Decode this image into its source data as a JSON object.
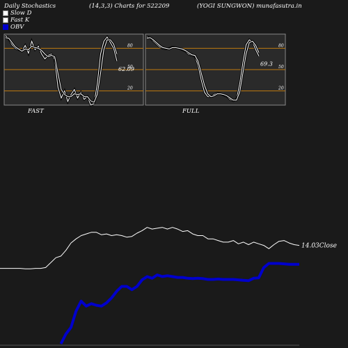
{
  "header": {
    "left": "Daily Stochastics",
    "center": "(14,3,3) Charts for 522209",
    "right": "(YOGI SUNGWON) munafasutra.in"
  },
  "legend": [
    {
      "label": "Slow  D",
      "color": "#ffffff"
    },
    {
      "label": "Fast K",
      "color": "#ffffff"
    },
    {
      "label": "OBV",
      "color": "#0000cc"
    }
  ],
  "chart_data": [
    {
      "type": "line",
      "title": "",
      "xlabel": "FAST",
      "ylim": [
        0,
        100
      ],
      "yticks": [
        20,
        50,
        80
      ],
      "ref_lines": [
        20,
        50,
        80
      ],
      "last_label": "62.09",
      "series": [
        {
          "values": [
            98,
            93,
            85,
            80,
            78,
            76,
            84,
            73,
            90,
            78,
            83,
            72,
            65,
            70,
            72,
            64,
            25,
            10,
            20,
            5,
            15,
            22,
            10,
            18,
            8,
            12,
            0,
            2,
            30,
            72,
            90,
            96,
            88,
            80,
            62
          ]
        },
        {
          "values": [
            95,
            94,
            88,
            82,
            79,
            76,
            79,
            78,
            83,
            81,
            80,
            77,
            72,
            68,
            70,
            68,
            45,
            22,
            15,
            12,
            12,
            16,
            15,
            16,
            12,
            12,
            6,
            4,
            15,
            45,
            78,
            92,
            92,
            86,
            72
          ]
        }
      ]
    },
    {
      "type": "line",
      "title": "",
      "xlabel": "FULL",
      "ylim": [
        0,
        100
      ],
      "yticks": [
        20,
        50,
        80
      ],
      "ref_lines": [
        20,
        50,
        80
      ],
      "last_label": "69.3",
      "series": [
        {
          "values": [
            96,
            95,
            90,
            86,
            82,
            80,
            79,
            80,
            82,
            81,
            80,
            78,
            76,
            72,
            70,
            69,
            56,
            35,
            18,
            12,
            12,
            15,
            17,
            16,
            14,
            12,
            8,
            6,
            8,
            30,
            60,
            85,
            92,
            89,
            78,
            69
          ]
        },
        {
          "values": [
            94,
            95,
            92,
            88,
            84,
            81,
            80,
            79,
            81,
            81,
            80,
            79,
            77,
            74,
            71,
            70,
            62,
            45,
            28,
            16,
            12,
            13,
            16,
            16,
            15,
            13,
            10,
            7,
            7,
            18,
            45,
            72,
            88,
            90,
            84,
            74
          ]
        }
      ]
    },
    {
      "type": "line",
      "title": "",
      "last_label": "14.03Close",
      "series": [
        {
          "name": "Close",
          "color": "#ffffff",
          "values": [
            11.2,
            11.2,
            11.2,
            11.2,
            11.2,
            11.15,
            11.15,
            11.2,
            11.2,
            11.3,
            11.9,
            12.5,
            12.7,
            13.4,
            14.3,
            14.8,
            15.2,
            15.4,
            15.6,
            15.6,
            15.3,
            15.4,
            15.2,
            15.3,
            15.2,
            15.0,
            15.1,
            15.5,
            15.8,
            16.2,
            16.0,
            16.1,
            16.2,
            16.0,
            16.2,
            16.0,
            15.7,
            15.8,
            15.4,
            15.2,
            15.2,
            14.8,
            14.8,
            14.6,
            14.4,
            14.4,
            14.6,
            14.2,
            14.4,
            14.1,
            14.4,
            14.2,
            14.0,
            13.6,
            14.1,
            14.5,
            14.6,
            14.3,
            14.1,
            14.0
          ]
        },
        {
          "name": "OBV",
          "color": "#0000cc",
          "values": [
            null,
            null,
            null,
            null,
            null,
            null,
            null,
            null,
            null,
            null,
            null,
            null,
            2.0,
            3.2,
            4.0,
            6.0,
            7.2,
            6.6,
            6.9,
            6.7,
            6.6,
            7.0,
            7.6,
            8.4,
            9.0,
            9.0,
            8.6,
            9.0,
            9.8,
            10.2,
            10.0,
            10.4,
            10.2,
            10.3,
            10.2,
            10.1,
            10.1,
            10.0,
            9.95,
            10.0,
            9.95,
            9.85,
            9.85,
            9.9,
            9.85,
            9.85,
            9.85,
            9.8,
            9.75,
            9.7,
            10.0,
            10.05,
            11.3,
            11.8,
            11.8,
            11.8,
            11.75,
            11.7,
            11.7,
            11.7
          ]
        }
      ]
    }
  ]
}
